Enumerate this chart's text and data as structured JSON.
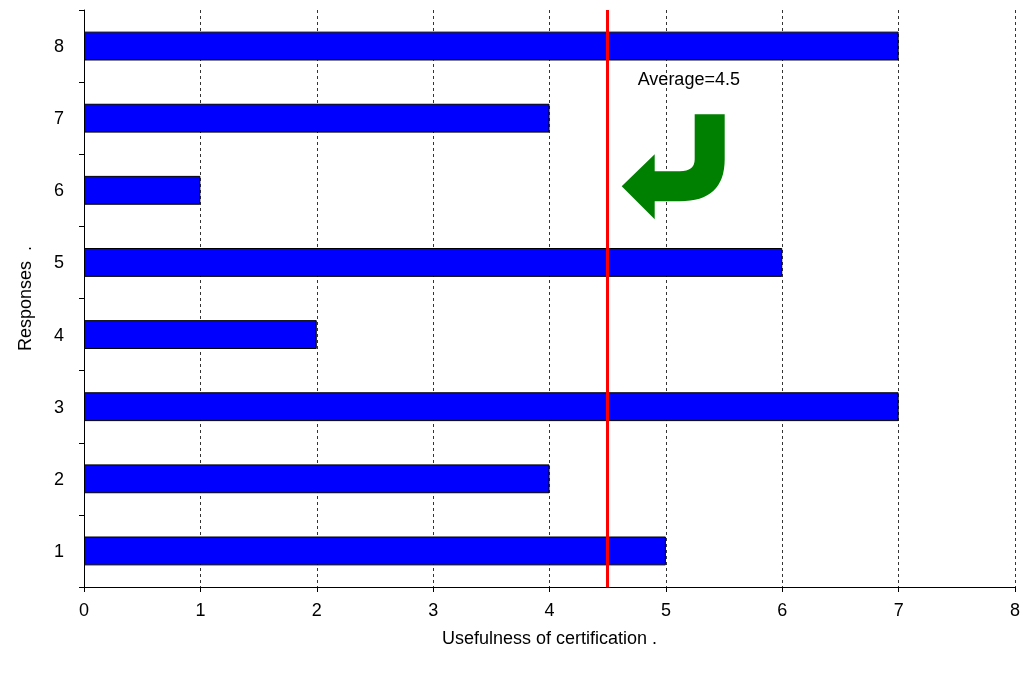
{
  "chart_data": {
    "type": "bar",
    "orientation": "horizontal",
    "xlabel": "Usefulness of certification .",
    "ylabel": "Responses  .",
    "categories": [
      "8",
      "7",
      "6",
      "5",
      "4",
      "3",
      "2",
      "1"
    ],
    "values": [
      7,
      4,
      1,
      6,
      2,
      7,
      4,
      5
    ],
    "color": "#0000ff",
    "xlim": [
      0,
      8
    ],
    "xticks": [
      0,
      1,
      2,
      3,
      4,
      5,
      6,
      7,
      8
    ],
    "grid": "x",
    "ref_lines": [
      {
        "axis": "x",
        "value": 4.5,
        "label": "Average=4.5",
        "color": "#ff0000"
      }
    ]
  }
}
